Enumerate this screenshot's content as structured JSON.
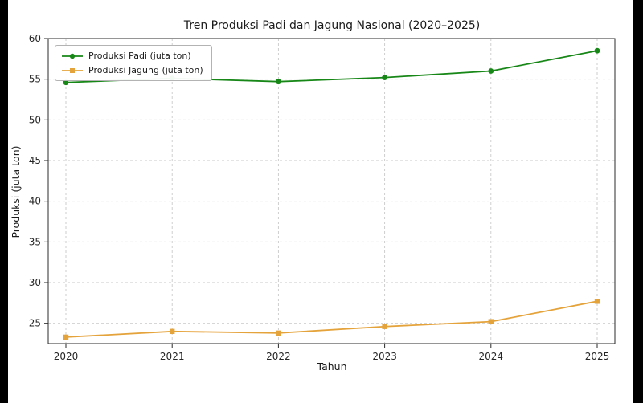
{
  "chart_data": {
    "type": "line",
    "title": "Tren Produksi Padi dan Jagung Nasional (2020–2025)",
    "xlabel": "Tahun",
    "ylabel": "Produksi (juta ton)",
    "x": [
      2020,
      2021,
      2022,
      2023,
      2024,
      2025
    ],
    "series": [
      {
        "name": "Produksi Padi (juta ton)",
        "values": [
          54.6,
          55.1,
          54.7,
          55.2,
          56.0,
          58.5
        ],
        "color": "#178717",
        "marker": "circle"
      },
      {
        "name": "Produksi Jagung (juta ton)",
        "values": [
          23.3,
          24.0,
          23.8,
          24.6,
          25.2,
          27.7
        ],
        "color": "#e5a33b",
        "marker": "square"
      }
    ],
    "ylim": [
      22.5,
      60
    ],
    "yticks": [
      25,
      30,
      35,
      40,
      45,
      50,
      55,
      60
    ],
    "grid": true,
    "grid_style": "dashed",
    "legend_position": "upper left",
    "colors": {
      "grid": "#c9c9c9",
      "spine": "#2b2b2b",
      "tick_text": "#262626",
      "background": "#ffffff",
      "letterbox": "#000000"
    }
  }
}
